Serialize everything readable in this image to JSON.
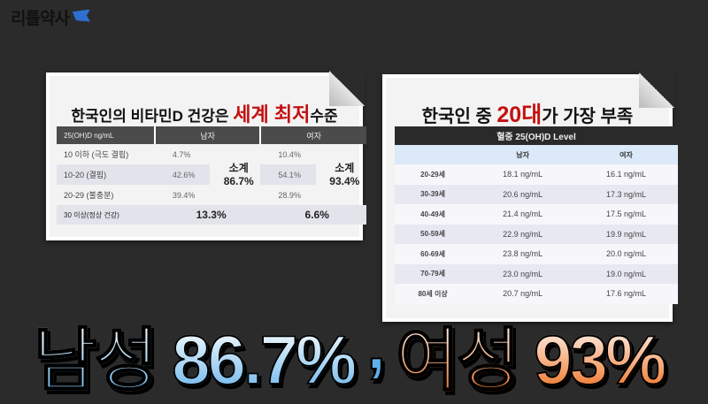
{
  "logo": {
    "text": "리틀약사",
    "icon": "flag-icon"
  },
  "left_card": {
    "title_pre": "한국인의 비타민D 건강은 ",
    "title_highlight": "세계 최저",
    "title_post": "수준",
    "headers": [
      "25(OH)D ng/mL",
      "남자",
      "여자"
    ],
    "rows": [
      {
        "label": "10 이하 (극도 결핍)",
        "male": "4.7%",
        "female": "10.4%"
      },
      {
        "label": "10-20 (결핍)",
        "male": "42.6%",
        "female": "54.1%"
      },
      {
        "label": "20-29 (불충분)",
        "male": "39.4%",
        "female": "28.9%"
      }
    ],
    "subtotal_label": "소계",
    "male_subtotal": "86.7%",
    "female_subtotal": "93.4%",
    "last_row": {
      "label": "30 이상(정상 건강)",
      "male": "13.3%",
      "female": "6.6%"
    }
  },
  "right_card": {
    "title_pre": "한국인 중 ",
    "title_highlight": "20대",
    "title_post": "가 가장 부족",
    "table_title": "혈중 25(OH)D Level",
    "headers": [
      "",
      "남자",
      "여자"
    ],
    "rows": [
      [
        "20-29세",
        "18.1 ng/mL",
        "16.1 ng/mL"
      ],
      [
        "30-39세",
        "20.6 ng/mL",
        "17.3 ng/mL"
      ],
      [
        "40-49세",
        "21.4 ng/mL",
        "17.5 ng/mL"
      ],
      [
        "50-59세",
        "22.9 ng/mL",
        "19.9 ng/mL"
      ],
      [
        "60-69세",
        "23.8 ng/mL",
        "20.0 ng/mL"
      ],
      [
        "70-79세",
        "23.0 ng/mL",
        "19.0 ng/mL"
      ],
      [
        "80세 이상",
        "20.7 ng/mL",
        "17.6 ng/mL"
      ]
    ]
  },
  "headline": {
    "male": "남성 86.7%",
    "sep": ",",
    "female": "여성 93%"
  },
  "colors": {
    "background": "#2b2b2b",
    "highlight": "#c41010",
    "male": "#5fb0ea",
    "female": "#f07a30"
  }
}
